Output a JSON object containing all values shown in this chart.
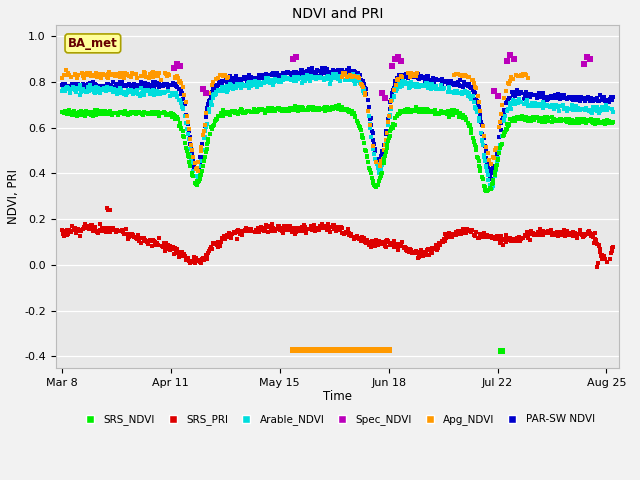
{
  "title": "NDVI and PRI",
  "xlabel": "Time",
  "ylabel": "NDVI, PRI",
  "ylim": [
    -0.45,
    1.05
  ],
  "xlim": [
    -2,
    174
  ],
  "legend_entries": [
    "SRS_NDVI",
    "SRS_PRI",
    "Arable_NDVI",
    "Spec_NDVI",
    "Apg_NDVI",
    "PAR-SW NDVI"
  ],
  "legend_colors": [
    "#00ee00",
    "#dd0000",
    "#00dddd",
    "#bb00bb",
    "#ff9900",
    "#0000cc"
  ],
  "label_box": "BA_met",
  "label_box_color": "#ffff99",
  "label_box_edgecolor": "#aaa000",
  "xtick_labels": [
    "Mar 8",
    "Apr 11",
    "May 15",
    "Jun 18",
    "Jul 22",
    "Aug 25"
  ],
  "xtick_positions": [
    0,
    34,
    68,
    102,
    136,
    170
  ],
  "ytick_positions": [
    -0.4,
    -0.2,
    0.0,
    0.2,
    0.4,
    0.6,
    0.8,
    1.0
  ],
  "colors": {
    "srs_ndvi": "#00ee00",
    "srs_pri": "#dd0000",
    "arable_ndvi": "#00dddd",
    "spec_ndvi": "#bb00bb",
    "apg_ndvi": "#ff9900",
    "par_sw": "#0000cc"
  },
  "fig_bg": "#f2f2f2",
  "plot_bg": "#e8e8e8"
}
